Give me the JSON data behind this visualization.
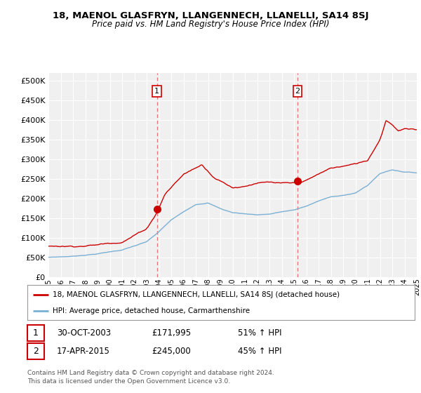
{
  "title": "18, MAENOL GLASFRYN, LLANGENNECH, LLANELLI, SA14 8SJ",
  "subtitle": "Price paid vs. HM Land Registry's House Price Index (HPI)",
  "red_label": "18, MAENOL GLASFRYN, LLANGENNECH, LLANELLI, SA14 8SJ (detached house)",
  "blue_label": "HPI: Average price, detached house, Carmarthenshire",
  "annotation1_date": "30-OCT-2003",
  "annotation1_price": "£171,995",
  "annotation1_hpi": "51% ↑ HPI",
  "annotation2_date": "17-APR-2015",
  "annotation2_price": "£245,000",
  "annotation2_hpi": "45% ↑ HPI",
  "footnote1": "Contains HM Land Registry data © Crown copyright and database right 2024.",
  "footnote2": "This data is licensed under the Open Government Licence v3.0.",
  "ylim": [
    0,
    520000
  ],
  "yticks": [
    0,
    50000,
    100000,
    150000,
    200000,
    250000,
    300000,
    350000,
    400000,
    450000,
    500000
  ],
  "xlim": [
    1995,
    2025
  ],
  "background_color": "#ffffff",
  "plot_bg_color": "#f0f0f0",
  "grid_color": "#ffffff",
  "red_color": "#cc0000",
  "blue_color": "#7ab0d4",
  "vline_color": "#e87070",
  "sale1_x": 2003.83,
  "sale1_y": 171995,
  "sale2_x": 2015.29,
  "sale2_y": 245000,
  "red_knots_t": [
    1995,
    1997,
    1999,
    2001,
    2003,
    2003.83,
    2004.5,
    2006,
    2007.5,
    2008.5,
    2010,
    2011,
    2012,
    2013,
    2014,
    2015.29,
    2016,
    2017,
    2018,
    2019,
    2020,
    2021,
    2022,
    2022.5,
    2023,
    2023.5,
    2024,
    2025
  ],
  "red_knots_v": [
    78000,
    80000,
    85000,
    95000,
    130000,
    172000,
    220000,
    270000,
    295000,
    265000,
    240000,
    245000,
    255000,
    255000,
    250000,
    248000,
    255000,
    270000,
    285000,
    290000,
    295000,
    305000,
    360000,
    410000,
    400000,
    385000,
    390000,
    385000
  ],
  "blue_knots_t": [
    1995,
    1997,
    1999,
    2001,
    2003,
    2004,
    2005,
    2006,
    2007,
    2008,
    2009,
    2010,
    2011,
    2012,
    2013,
    2014,
    2015,
    2016,
    2017,
    2018,
    2019,
    2020,
    2021,
    2022,
    2023,
    2024,
    2025
  ],
  "blue_knots_v": [
    50000,
    53000,
    60000,
    70000,
    90000,
    115000,
    145000,
    165000,
    185000,
    190000,
    175000,
    165000,
    162000,
    160000,
    162000,
    168000,
    172000,
    182000,
    195000,
    205000,
    210000,
    215000,
    235000,
    265000,
    275000,
    270000,
    268000
  ]
}
